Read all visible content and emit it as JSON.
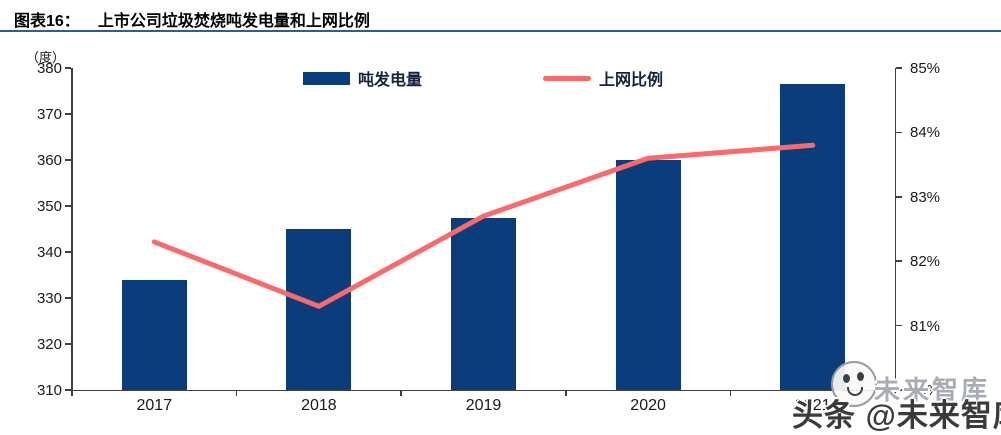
{
  "header": {
    "label": "图表16：",
    "title": "上市公司垃圾焚烧吨发电量和上网比例"
  },
  "unit_label": "（度）",
  "chart_data": {
    "type": "bar",
    "subtype": "bar+line dual-axis",
    "title": "上市公司垃圾焚烧吨发电量和上网比例",
    "categories": [
      "2017",
      "2018",
      "2019",
      "2020",
      "2021"
    ],
    "series": [
      {
        "name": "吨发电量",
        "type": "bar",
        "axis": "left",
        "unit": "度",
        "values": [
          334,
          345,
          347.5,
          360,
          376.5
        ],
        "color": "#0b3d7c"
      },
      {
        "name": "上网比例",
        "type": "line",
        "axis": "right",
        "unit": "%",
        "values": [
          82.3,
          81.3,
          82.7,
          83.6,
          83.8
        ],
        "color": "#fa6a6a"
      }
    ],
    "left_axis": {
      "label": "（度）",
      "min": 310,
      "max": 380,
      "step": 10,
      "ticks": [
        "380",
        "370",
        "360",
        "350",
        "340",
        "330",
        "320",
        "310"
      ]
    },
    "right_axis": {
      "min": 80,
      "max": 85,
      "step": 1,
      "ticks": [
        "85%",
        "84%",
        "83%",
        "82%",
        "81%",
        "80%"
      ]
    },
    "grid": "off",
    "legend_position": "top-center"
  },
  "colors": {
    "bar": "#0b3d7c",
    "line": "#fa6a6a",
    "title_rule": "#2d5aa0",
    "axis": "#3f3f3f",
    "legend_text": "#16213c"
  },
  "watermark": {
    "logo": "wechat-face-icon",
    "text_small": "未来智库",
    "text_large": "头条 @未来智库"
  }
}
